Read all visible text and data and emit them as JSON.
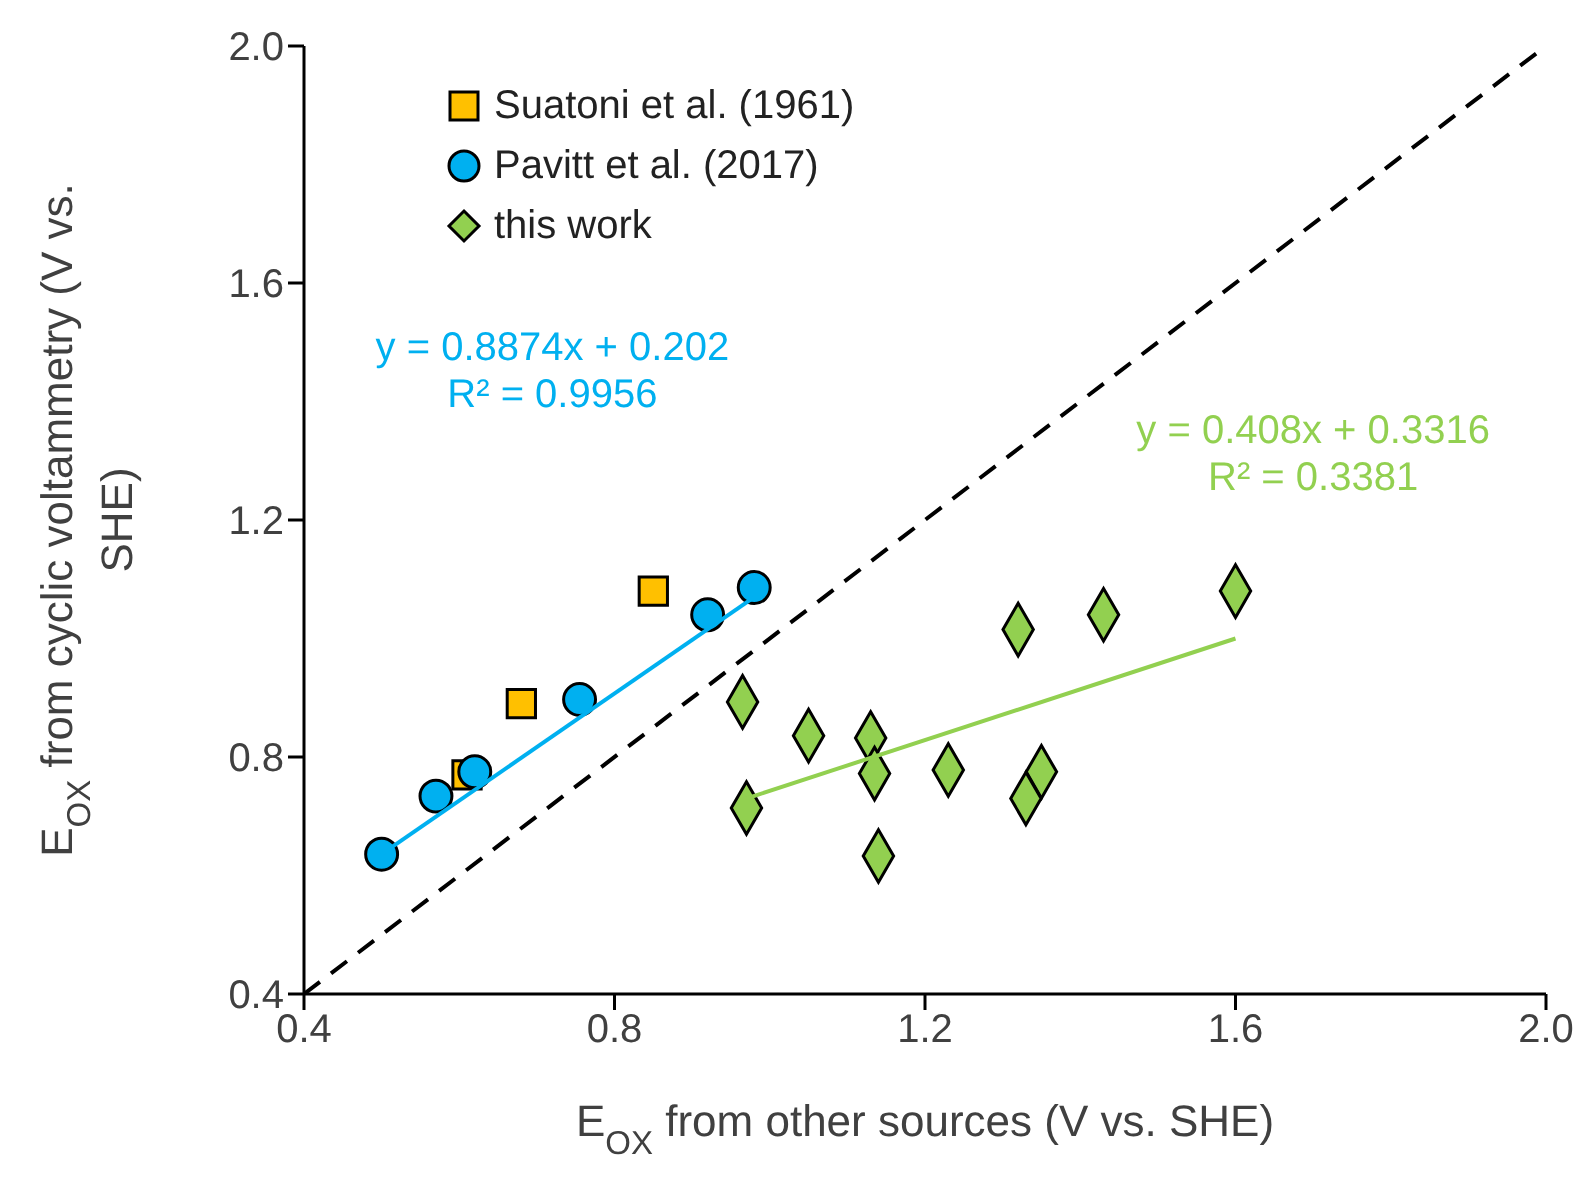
{
  "chart_data": {
    "type": "scatter",
    "xlabel": "E$_{OX}$ from other sources (V vs. SHE)",
    "ylabel": "E$_{OX}$ from cyclic voltammetry (V vs. SHE)",
    "xlim": [
      0.4,
      2.0
    ],
    "ylim": [
      0.4,
      2.0
    ],
    "xticks": [
      0.4,
      0.8,
      1.2,
      1.6,
      {
        "value": 2,
        "label": "2.0"
      }
    ],
    "yticks": [
      0.4,
      0.8,
      1.2,
      1.6,
      {
        "value": 2,
        "label": "2.0"
      }
    ],
    "grid": false,
    "legend": "top left",
    "annotations": [
      "y = 0.8874x + 0.202",
      "R² = 0.9956",
      "y = 0.408x + 0.3316",
      "R² = 0.3381"
    ],
    "series": [
      {
        "name": "Suatoni et al. (1961)",
        "marker": "square",
        "color": "#ffc000",
        "x": [
          0.61,
          0.68,
          0.85
        ],
        "values": [
          0.77,
          0.89,
          1.08
        ]
      },
      {
        "name": "Pavitt et al. (2017)",
        "marker": "circle",
        "color": "#00b0f0",
        "x": [
          0.5,
          0.57,
          0.62,
          0.755,
          0.92,
          0.98
        ],
        "values": [
          0.636,
          0.734,
          0.775,
          0.897,
          1.04,
          1.086
        ]
      },
      {
        "name": "this work",
        "marker": "diamond",
        "color": "#92d050",
        "x": [
          0.965,
          1.05,
          1.13,
          1.135,
          0.97,
          1.14,
          1.23,
          1.32,
          1.43,
          1.6,
          1.35,
          1.33
        ],
        "values": [
          0.893,
          0.836,
          0.832,
          0.772,
          0.714,
          0.633,
          0.778,
          1.015,
          1.04,
          1.08,
          0.775,
          0.73
        ]
      },
      {
        "type": "line",
        "color": "#00b0f0",
        "x": [
          0.5,
          0.98
        ],
        "values": [
          0.636,
          1.07
        ]
      },
      {
        "type": "line",
        "color": "#92d050",
        "x": [
          0.97,
          1.6
        ],
        "values": [
          0.73,
          1.0
        ]
      },
      {
        "type": "line",
        "line_style": "dashed",
        "color": "#000000",
        "x": [
          0.4,
          2.0
        ],
        "values": [
          0.4,
          2.0
        ]
      }
    ]
  }
}
